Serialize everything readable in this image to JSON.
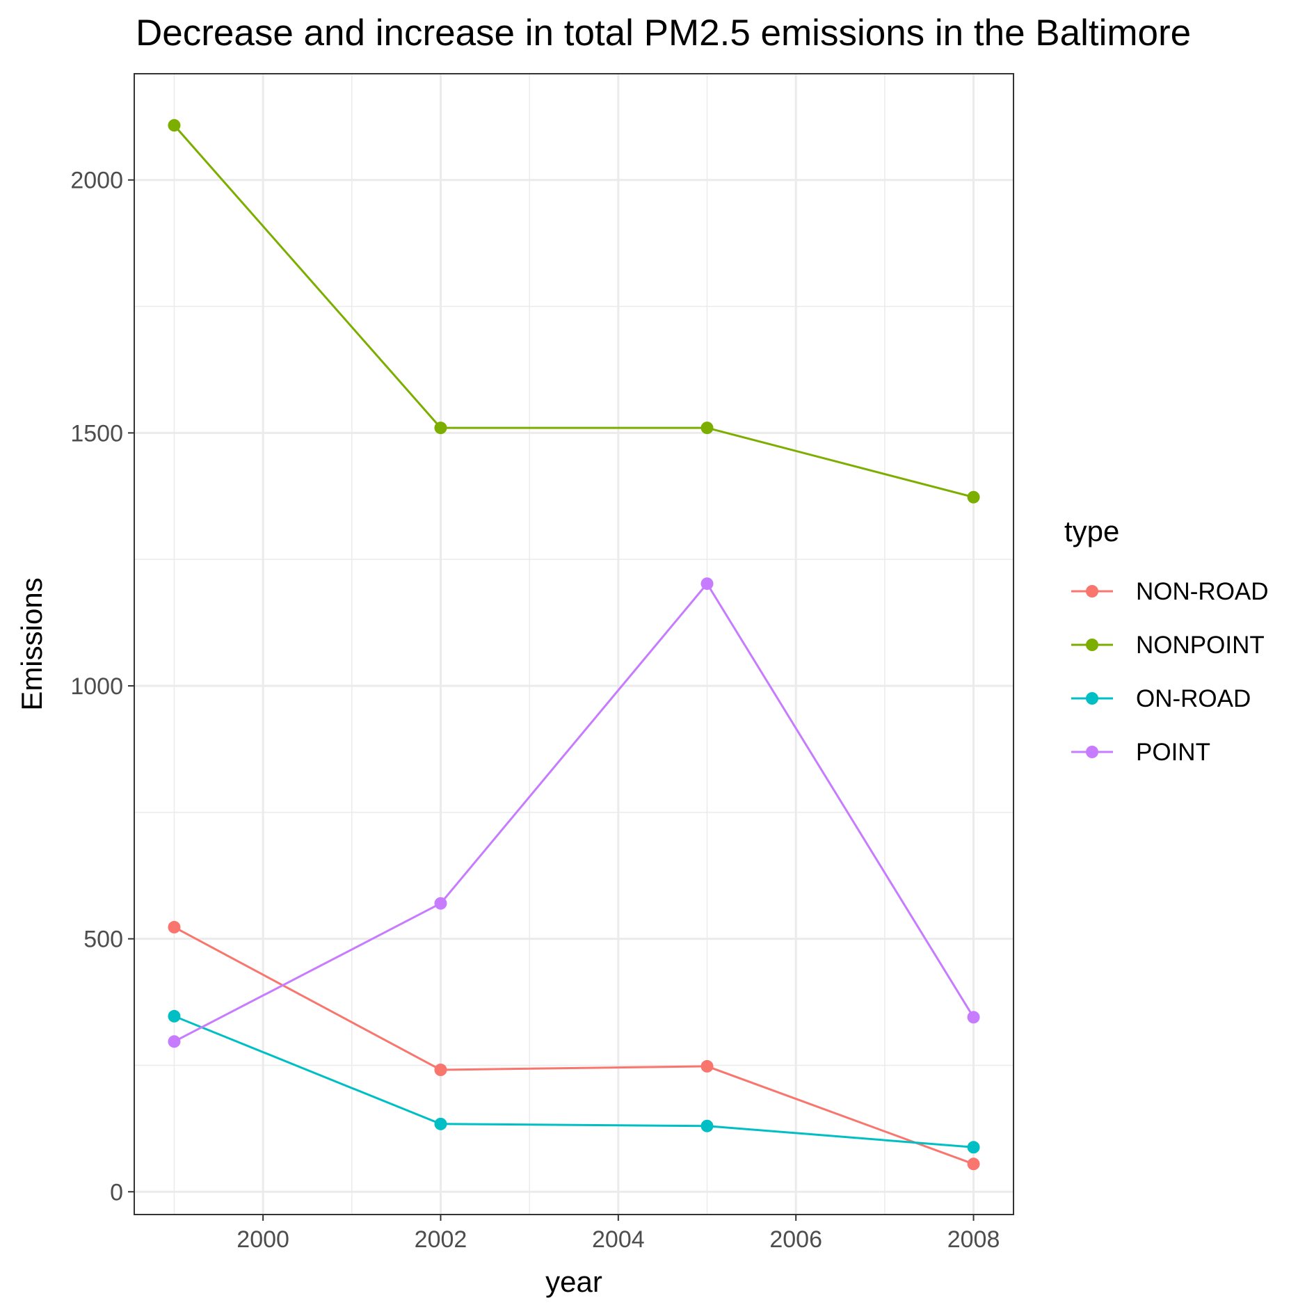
{
  "chart_data": {
    "type": "line",
    "title": "Decrease and increase in total PM2.5 emissions in the Baltimore",
    "xlabel": "year",
    "ylabel": "Emissions",
    "x": [
      1999,
      2002,
      2005,
      2008
    ],
    "xlim": [
      1998.55,
      2008.45
    ],
    "ylim": [
      -45,
      2210
    ],
    "x_ticks": [
      2000,
      2002,
      2004,
      2006,
      2008
    ],
    "x_minor_ticks": [
      1999,
      2001,
      2003,
      2005,
      2007
    ],
    "y_ticks": [
      0,
      500,
      1000,
      1500,
      2000
    ],
    "y_minor_ticks": [
      250,
      750,
      1250,
      1750
    ],
    "grid": true,
    "legend": {
      "title": "type",
      "position": "right"
    },
    "series": [
      {
        "name": "NON-ROAD",
        "color": "#F8766D",
        "values": [
          523,
          241,
          248,
          55
        ]
      },
      {
        "name": "NONPOINT",
        "color": "#7CAE00",
        "values": [
          2108,
          1510,
          1510,
          1373
        ]
      },
      {
        "name": "ON-ROAD",
        "color": "#00BFC4",
        "values": [
          347,
          134,
          130,
          88
        ]
      },
      {
        "name": "POINT",
        "color": "#C77CFF",
        "values": [
          297,
          570,
          1202,
          345
        ]
      }
    ]
  }
}
